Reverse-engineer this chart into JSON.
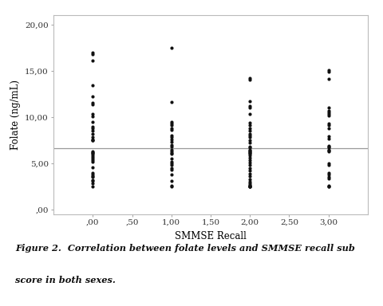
{
  "xlabel": "SMMSE Recall",
  "ylabel": "Folate (ng/mL)",
  "xlim": [
    -0.5,
    3.5
  ],
  "ylim": [
    -0.5,
    21.0
  ],
  "xticks": [
    0.0,
    0.5,
    1.0,
    1.5,
    2.0,
    2.5,
    3.0
  ],
  "xtick_labels": [
    ",00",
    ",50",
    "1,00",
    "1,50",
    "2,00",
    "2,50",
    "3,00"
  ],
  "yticks": [
    0.0,
    5.0,
    10.0,
    15.0,
    20.0
  ],
  "ytick_labels": [
    ",00",
    "5,00",
    "10,00",
    "15,00",
    "20,00"
  ],
  "hline_y": 6.65,
  "hline_color": "#999999",
  "background_color": "#ffffff",
  "dot_color": "#111111",
  "dot_size": 9,
  "caption_line1": "Figure 2.  Correlation between folate levels and SMMSE recall sub",
  "caption_line2": "score in both sexes.",
  "scatter_data": {
    "x0": [
      0,
      0,
      0,
      0,
      0,
      0,
      0,
      0,
      0,
      0,
      0,
      0,
      0,
      0,
      0,
      0,
      0,
      0,
      0,
      0,
      0,
      0,
      0,
      0,
      0,
      0,
      0,
      0,
      0,
      0,
      0,
      0,
      0,
      0,
      0,
      0
    ],
    "y0": [
      17.0,
      16.8,
      16.1,
      13.4,
      12.2,
      11.5,
      11.4,
      10.3,
      10.1,
      9.5,
      9.0,
      8.8,
      8.5,
      8.2,
      7.8,
      7.6,
      7.5,
      7.5,
      6.3,
      6.2,
      6.1,
      6.0,
      5.9,
      5.7,
      5.5,
      5.3,
      5.2,
      4.6,
      4.0,
      3.8,
      3.6,
      3.5,
      3.2,
      3.1,
      2.8,
      2.5
    ],
    "x1": [
      1,
      1,
      1,
      1,
      1,
      1,
      1,
      1,
      1,
      1,
      1,
      1,
      1,
      1,
      1,
      1,
      1,
      1,
      1,
      1,
      1,
      1,
      1,
      1,
      1,
      1,
      1
    ],
    "y1": [
      17.5,
      11.6,
      9.5,
      9.3,
      9.1,
      8.8,
      8.6,
      8.0,
      7.8,
      7.6,
      7.3,
      7.0,
      6.8,
      6.5,
      6.3,
      6.1,
      6.0,
      5.5,
      5.2,
      5.0,
      4.8,
      4.5,
      4.3,
      3.8,
      3.1,
      2.6,
      2.5
    ],
    "x2": [
      2,
      2,
      2,
      2,
      2,
      2,
      2,
      2,
      2,
      2,
      2,
      2,
      2,
      2,
      2,
      2,
      2,
      2,
      2,
      2,
      2,
      2,
      2,
      2,
      2,
      2,
      2,
      2,
      2,
      2,
      2,
      2,
      2,
      2,
      2,
      2,
      2,
      2,
      2,
      2,
      2
    ],
    "y2": [
      14.2,
      14.0,
      11.7,
      11.2,
      11.0,
      10.3,
      9.4,
      9.1,
      8.8,
      8.5,
      8.2,
      8.0,
      7.8,
      7.5,
      7.2,
      6.8,
      6.7,
      6.5,
      6.4,
      6.3,
      6.2,
      6.1,
      6.0,
      5.9,
      5.6,
      5.3,
      5.1,
      4.8,
      4.5,
      4.2,
      3.9,
      3.6,
      3.3,
      3.0,
      2.8,
      2.7,
      2.6,
      2.5,
      2.5,
      2.5,
      2.5
    ],
    "x3": [
      3,
      3,
      3,
      3,
      3,
      3,
      3,
      3,
      3,
      3,
      3,
      3,
      3,
      3,
      3,
      3,
      3,
      3,
      3,
      3,
      3,
      3,
      3,
      3,
      3,
      3,
      3,
      3
    ],
    "y3": [
      15.1,
      14.9,
      14.1,
      11.0,
      10.7,
      10.5,
      10.3,
      10.2,
      9.3,
      9.1,
      8.8,
      7.9,
      7.7,
      6.9,
      6.8,
      6.7,
      6.5,
      6.4,
      6.3,
      5.0,
      4.8,
      4.0,
      3.8,
      3.5,
      3.4,
      2.6,
      2.5,
      2.5
    ]
  }
}
